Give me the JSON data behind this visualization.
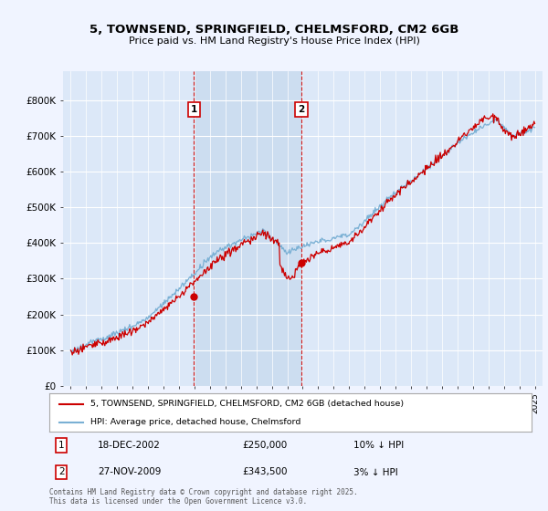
{
  "title_line1": "5, TOWNSEND, SPRINGFIELD, CHELMSFORD, CM2 6GB",
  "title_line2": "Price paid vs. HM Land Registry's House Price Index (HPI)",
  "background_color": "#f0f4ff",
  "plot_bg_color": "#dce8f8",
  "legend_label_red": "5, TOWNSEND, SPRINGFIELD, CHELMSFORD, CM2 6GB (detached house)",
  "legend_label_blue": "HPI: Average price, detached house, Chelmsford",
  "marker1_date": "18-DEC-2002",
  "marker1_price": "£250,000",
  "marker1_hpi": "10% ↓ HPI",
  "marker2_date": "27-NOV-2009",
  "marker2_price": "£343,500",
  "marker2_hpi": "3% ↓ HPI",
  "footer": "Contains HM Land Registry data © Crown copyright and database right 2025.\nThis data is licensed under the Open Government Licence v3.0.",
  "xmin": 1994.5,
  "xmax": 2025.5,
  "ymin": 0,
  "ymax": 880000,
  "yticks": [
    0,
    100000,
    200000,
    300000,
    400000,
    500000,
    600000,
    700000,
    800000
  ],
  "ytick_labels": [
    "£0",
    "£100K",
    "£200K",
    "£300K",
    "£400K",
    "£500K",
    "£600K",
    "£700K",
    "£800K"
  ],
  "red_color": "#cc0000",
  "blue_color": "#7ab0d4",
  "shade_color": "#ccddf0",
  "marker1_x": 2002.96,
  "marker1_y": 250000,
  "marker2_x": 2009.9,
  "marker2_y": 343500,
  "vline1_x": 2002.96,
  "vline2_x": 2009.9
}
